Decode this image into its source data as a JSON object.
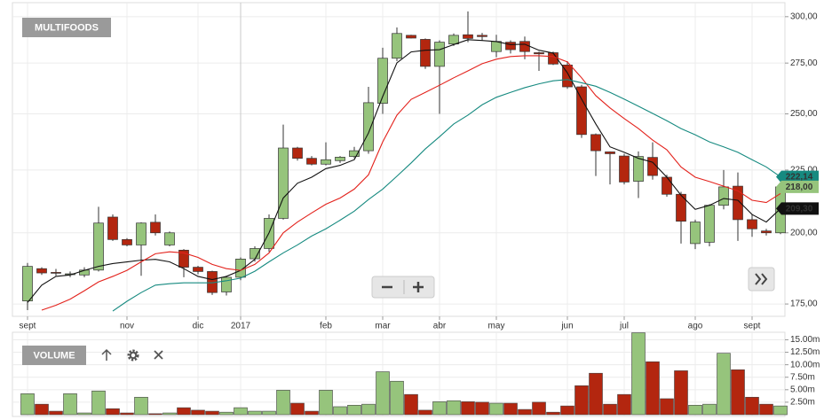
{
  "chart_data": [
    {
      "type": "candlestick",
      "title": "MULTIFOODS",
      "categories": [
        "sept",
        null,
        null,
        null,
        null,
        null,
        null,
        "nov",
        null,
        null,
        null,
        null,
        "dic",
        null,
        null,
        "2017",
        null,
        null,
        null,
        null,
        null,
        "feb",
        null,
        null,
        null,
        "mar",
        null,
        null,
        null,
        "abr",
        null,
        null,
        null,
        "may",
        null,
        null,
        null,
        null,
        "jun",
        null,
        null,
        null,
        "jul",
        null,
        null,
        null,
        null,
        "ago",
        null,
        null,
        null,
        "sept",
        null,
        null
      ],
      "open": [
        176,
        187,
        185.7,
        185,
        184.8,
        186.5,
        206,
        197.5,
        195.5,
        204,
        195.5,
        193.6,
        187.5,
        186,
        179,
        184,
        190.5,
        194.2,
        205.5,
        234.5,
        230,
        227.5,
        229,
        230.8,
        233.3,
        255,
        277.5,
        289.7,
        287.5,
        273.3,
        285,
        290,
        289.7,
        281,
        286,
        286.4,
        280.4,
        280.4,
        274,
        263,
        240.5,
        232.8,
        231,
        220.3,
        230.4,
        222,
        215,
        196,
        196.5,
        210.6,
        218.3,
        205,
        200.7,
        200
      ],
      "high": [
        189,
        187.5,
        186.9,
        186,
        187.5,
        210,
        207,
        198,
        204,
        207,
        200.5,
        194,
        188,
        186.3,
        184.5,
        191,
        195,
        207,
        245,
        235,
        231,
        237,
        231,
        235,
        263,
        283,
        294,
        290,
        288,
        287,
        290.7,
        303,
        291,
        290,
        287,
        289,
        281,
        281,
        276,
        264,
        241,
        233,
        232,
        233,
        237,
        223,
        216,
        205,
        211,
        225,
        224,
        207,
        201.5,
        219
      ],
      "low": [
        173,
        184.8,
        184.5,
        184,
        184,
        186,
        197,
        195,
        184.5,
        199,
        195,
        184,
        185,
        178,
        177.8,
        183,
        189.5,
        193,
        205,
        229,
        227,
        227,
        228,
        230,
        232,
        250,
        276,
        288,
        272,
        250,
        284,
        286,
        287,
        278,
        280,
        277,
        271,
        274,
        262,
        239,
        222.5,
        219,
        219,
        213.5,
        221,
        214,
        196,
        194,
        195,
        209,
        197,
        198.5,
        199,
        199.5
      ],
      "close": [
        187.8,
        185.5,
        185.4,
        185.2,
        186.5,
        203.7,
        197.5,
        195.5,
        203.7,
        200,
        200,
        187.5,
        186,
        178.8,
        184,
        190.4,
        194.2,
        205.5,
        234.5,
        230,
        227.5,
        229.4,
        230.5,
        233.3,
        255.3,
        277.5,
        290.7,
        288.2,
        273.3,
        286,
        289.7,
        288,
        289,
        286.4,
        282,
        281,
        279.8,
        274.5,
        263,
        240.5,
        233.3,
        232,
        220,
        230.8,
        222.7,
        215,
        204.4,
        204.1,
        210.6,
        218,
        205,
        201.5,
        200,
        218
      ],
      "close_label": {
        "value": 218,
        "label": "218,00"
      },
      "up_color": "#96c47c",
      "down_color": "#b3260f",
      "series": [
        {
          "color": "#111111",
          "values": [
            175.5,
            181.3,
            184.3,
            184.8,
            186.4,
            187.8,
            188.8,
            189.4,
            190,
            190.3,
            189.4,
            187,
            184.3,
            183.2,
            184.3,
            186.4,
            190.3,
            200,
            213.5,
            219.5,
            222,
            225.6,
            227,
            229.4,
            241.2,
            258.3,
            275.1,
            280.8,
            281.7,
            282,
            284.7,
            287.3,
            286.9,
            286.3,
            284.7,
            284.9,
            281.7,
            280.2,
            270,
            257,
            245.3,
            235,
            232.6,
            230,
            228.3,
            222,
            214.6,
            209,
            210.6,
            213.3,
            212.6,
            207,
            204.1,
            209.3
          ],
          "end_label": {
            "value": 209.3,
            "label": "209,30"
          }
        },
        {
          "color": "#e3221c",
          "values": [
            null,
            173,
            174.6,
            176.6,
            179.4,
            182.4,
            184.3,
            186.4,
            189.4,
            192.3,
            193,
            192.6,
            191,
            188.5,
            187,
            186.4,
            188.5,
            192.6,
            200,
            204.1,
            207.6,
            211,
            213.5,
            217.1,
            223,
            237.2,
            249.4,
            256.9,
            260.3,
            263.8,
            267.5,
            271,
            274.7,
            277,
            278.4,
            278.8,
            278.8,
            278.4,
            275.6,
            267.5,
            258.7,
            252.8,
            247.8,
            243.2,
            238,
            233.7,
            226.3,
            222,
            220.2,
            218.3,
            216.4,
            212.6,
            211.7,
            215.3
          ]
        },
        {
          "color": "#168a80",
          "values": [
            null,
            null,
            null,
            null,
            null,
            null,
            172.7,
            175.9,
            178.8,
            181.3,
            181.8,
            182.1,
            182.1,
            182.1,
            182.8,
            183.7,
            186.1,
            189.4,
            192.6,
            195.5,
            198.8,
            201.5,
            204.8,
            208.3,
            212.9,
            217.1,
            222.4,
            228,
            234.1,
            239.5,
            245.3,
            249.4,
            254.3,
            257.9,
            260.3,
            262.6,
            264.5,
            266,
            266.6,
            265,
            263.3,
            260.3,
            257,
            253.6,
            250.2,
            246.8,
            243.2,
            240.4,
            237.2,
            235,
            232.6,
            229.4,
            226.3,
            222.14
          ],
          "end_label": {
            "value": 222.14,
            "label": "222,14"
          }
        }
      ],
      "ylim": [
        171,
        308
      ],
      "log_scale": true,
      "grid": true,
      "yticks": [
        {
          "value": 175,
          "label": "175,00"
        },
        {
          "value": 200,
          "label": "200,00"
        },
        {
          "value": 225,
          "label": "225,00"
        },
        {
          "value": 250,
          "label": "250,00"
        },
        {
          "value": 275,
          "label": "275,00"
        },
        {
          "value": 300,
          "label": "300,00"
        }
      ]
    },
    {
      "type": "bar",
      "title": "VOLUME",
      "values": [
        4.2,
        2.1,
        0.7,
        4.2,
        0.35,
        4.75,
        1.2,
        0.35,
        3.5,
        0.2,
        0.35,
        1.4,
        0.9,
        0.7,
        0.5,
        1.4,
        0.7,
        0.7,
        4.9,
        2.3,
        0.7,
        4.9,
        1.6,
        1.9,
        2.1,
        8.6,
        6.7,
        4.05,
        0.9,
        2.6,
        2.8,
        2.6,
        2.5,
        2.3,
        2.3,
        1.05,
        2.5,
        0.5,
        1.75,
        5.8,
        8.3,
        2.1,
        4.05,
        16.4,
        10.6,
        3.2,
        8.8,
        1.9,
        2.1,
        12.3,
        9,
        3.5,
        2.1,
        1.75
      ],
      "up_color": "#96c47c",
      "down_color": "#b3260f",
      "ylim": [
        0,
        16.5
      ],
      "grid": true,
      "yticks": [
        {
          "value": 2.5,
          "label": "2.50m"
        },
        {
          "value": 5,
          "label": "5.00m"
        },
        {
          "value": 7.5,
          "label": "7.50m"
        },
        {
          "value": 10,
          "label": "10.00m"
        },
        {
          "value": 12.5,
          "label": "12.50m"
        },
        {
          "value": 15,
          "label": "15.00m"
        }
      ]
    }
  ]
}
